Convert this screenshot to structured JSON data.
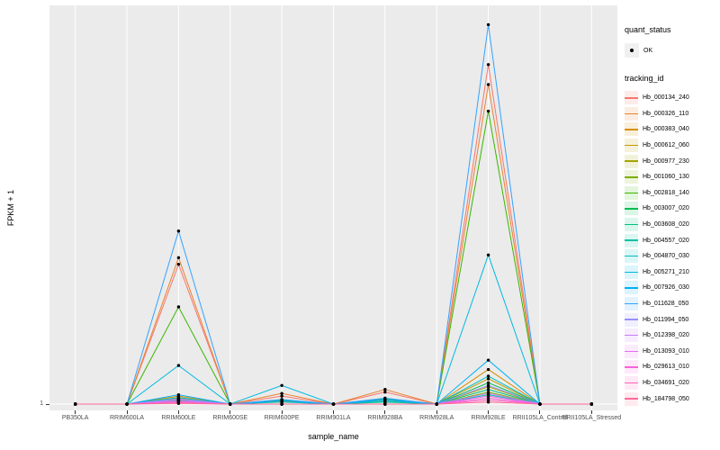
{
  "chart_data": {
    "type": "line",
    "title": "",
    "xlabel": "sample_name",
    "ylabel": "FPKM + 1",
    "x_categories": [
      "PB350LA",
      "RRIM600LA",
      "RRIM600LE",
      "RRIM600SE",
      "RRIM600PE",
      "RRIM901LA",
      "RRIM928BA",
      "RRIM928LA",
      "RRIM928LE",
      "RRII105LA_Control",
      "RRII105LA_Stressed"
    ],
    "y_ticks": [
      1
    ],
    "ylim": [
      1,
      30
    ],
    "grid": true,
    "legend_position": "right",
    "panel_bg": "#EBEBEB",
    "point_color": "#000000",
    "series": [
      {
        "name": "Hb_000134_240",
        "color": "#F8766D",
        "values": [
          1,
          1,
          11.5,
          1,
          1.6,
          1,
          1.9,
          1,
          26.5,
          1,
          1
        ]
      },
      {
        "name": "Hb_000326_110",
        "color": "#EA8331",
        "values": [
          1,
          1,
          12,
          1,
          1.8,
          1,
          2.1,
          1,
          25,
          1,
          1
        ]
      },
      {
        "name": "Hb_000383_040",
        "color": "#D89000",
        "values": [
          1,
          1,
          1.6,
          1,
          1.2,
          1,
          1.3,
          1,
          3.6,
          1,
          1
        ]
      },
      {
        "name": "Hb_000612_060",
        "color": "#C09B00",
        "values": [
          1,
          1,
          1.45,
          1,
          1,
          1,
          1.2,
          1,
          2.9,
          1,
          1
        ]
      },
      {
        "name": "Hb_000977_230",
        "color": "#A3A500",
        "values": [
          1,
          1,
          1.35,
          1,
          1,
          1,
          1,
          1,
          2.3,
          1,
          1
        ]
      },
      {
        "name": "Hb_001060_130",
        "color": "#7CAE00",
        "values": [
          1,
          1,
          1.25,
          1,
          1,
          1,
          1,
          1,
          1.9,
          1,
          1
        ]
      },
      {
        "name": "Hb_002818_140",
        "color": "#39B600",
        "values": [
          1,
          1,
          8.3,
          1,
          1.3,
          1,
          1.4,
          1,
          23,
          1,
          1
        ]
      },
      {
        "name": "Hb_003007_020",
        "color": "#00BB4E",
        "values": [
          1,
          1,
          1.3,
          1,
          1,
          1,
          1,
          1,
          2.6,
          1,
          1
        ]
      },
      {
        "name": "Hb_003608_020",
        "color": "#00BF7D",
        "values": [
          1,
          1,
          1.3,
          1,
          1,
          1,
          1.15,
          1,
          2.1,
          1,
          1
        ]
      },
      {
        "name": "Hb_004557_020",
        "color": "#00C1A3",
        "values": [
          1,
          1,
          1.2,
          1,
          1,
          1,
          1,
          1,
          1.7,
          1,
          1
        ]
      },
      {
        "name": "Hb_004870_030",
        "color": "#00BFC4",
        "values": [
          1,
          1,
          1.5,
          1,
          1.15,
          1,
          1.2,
          1,
          3.1,
          1,
          1
        ]
      },
      {
        "name": "Hb_005271_210",
        "color": "#00BAE0",
        "values": [
          1,
          1,
          3.9,
          1,
          2.4,
          1,
          1.3,
          1,
          12.2,
          1,
          1
        ]
      },
      {
        "name": "Hb_007926_030",
        "color": "#00B0F6",
        "values": [
          1,
          1,
          1.7,
          1,
          1.25,
          1,
          1.35,
          1,
          4.3,
          1,
          1
        ]
      },
      {
        "name": "Hb_011628_050",
        "color": "#35A2FF",
        "values": [
          1,
          1,
          14,
          1,
          1.35,
          1,
          1.45,
          1,
          29.5,
          1,
          1
        ]
      },
      {
        "name": "Hb_011994_050",
        "color": "#9590FF",
        "values": [
          1,
          1,
          1.4,
          1,
          1,
          1,
          1,
          1,
          2.4,
          1,
          1
        ]
      },
      {
        "name": "Hb_012398_020",
        "color": "#C77CFF",
        "values": [
          1,
          1,
          1.3,
          1,
          1,
          1,
          1,
          1,
          1.8,
          1,
          1
        ]
      },
      {
        "name": "Hb_013093_010",
        "color": "#E76BF3",
        "values": [
          1,
          1,
          1.2,
          1,
          1,
          1,
          1,
          1,
          1.6,
          1,
          1
        ]
      },
      {
        "name": "Hb_029613_010",
        "color": "#FA62DB",
        "values": [
          1,
          1,
          1.15,
          1,
          1,
          1,
          1,
          1,
          1.45,
          1,
          1
        ]
      },
      {
        "name": "Hb_034691_020",
        "color": "#FF62BC",
        "values": [
          1,
          1,
          1.1,
          1,
          1,
          1,
          1,
          1,
          1.3,
          1,
          1
        ]
      },
      {
        "name": "Hb_184798_050",
        "color": "#FF6A98",
        "values": [
          1,
          1,
          1.05,
          1,
          1,
          1,
          1,
          1,
          1.15,
          1,
          1
        ]
      }
    ]
  },
  "legend": {
    "quant_status_title": "quant_status",
    "ok_label": "OK",
    "tracking_title": "tracking_id"
  }
}
